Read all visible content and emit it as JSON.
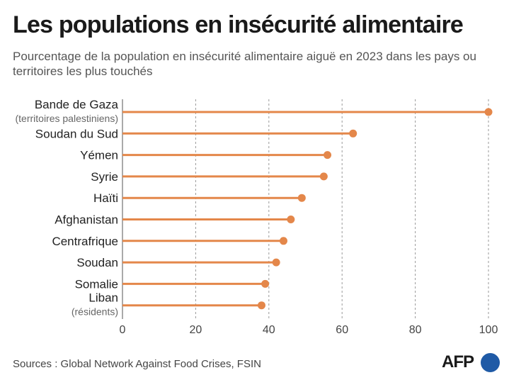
{
  "title": "Les populations en insécurité alimentaire",
  "subtitle": "Pourcentage de la population en insécurité alimentaire aiguë en 2023 dans les pays ou territoires les plus touchés",
  "source": "Sources : Global Network Against Food Crises, FSIN",
  "logo": {
    "text": "AFP",
    "icon": "afp-dot-icon"
  },
  "colors": {
    "series": "#e4874a",
    "grid": "#999999",
    "axis": "#555555"
  },
  "chart_data": {
    "type": "bar",
    "orientation": "horizontal",
    "style": "lollipop",
    "categories": [
      {
        "name": "Bande de Gaza",
        "sub": "(territoires palestiniens)"
      },
      {
        "name": "Soudan du Sud",
        "sub": ""
      },
      {
        "name": "Yémen",
        "sub": ""
      },
      {
        "name": "Syrie",
        "sub": ""
      },
      {
        "name": "Haïti",
        "sub": ""
      },
      {
        "name": "Afghanistan",
        "sub": ""
      },
      {
        "name": "Centrafrique",
        "sub": ""
      },
      {
        "name": "Soudan",
        "sub": ""
      },
      {
        "name": "Somalie",
        "sub": ""
      },
      {
        "name": "Liban",
        "sub": "(résidents)"
      }
    ],
    "values": [
      100,
      63,
      56,
      55,
      49,
      46,
      44,
      42,
      39,
      38
    ],
    "xlim": [
      0,
      100
    ],
    "xticks": [
      0,
      20,
      40,
      60,
      80,
      100
    ],
    "grid": "vertical dashed",
    "xlabel": "",
    "ylabel": ""
  }
}
